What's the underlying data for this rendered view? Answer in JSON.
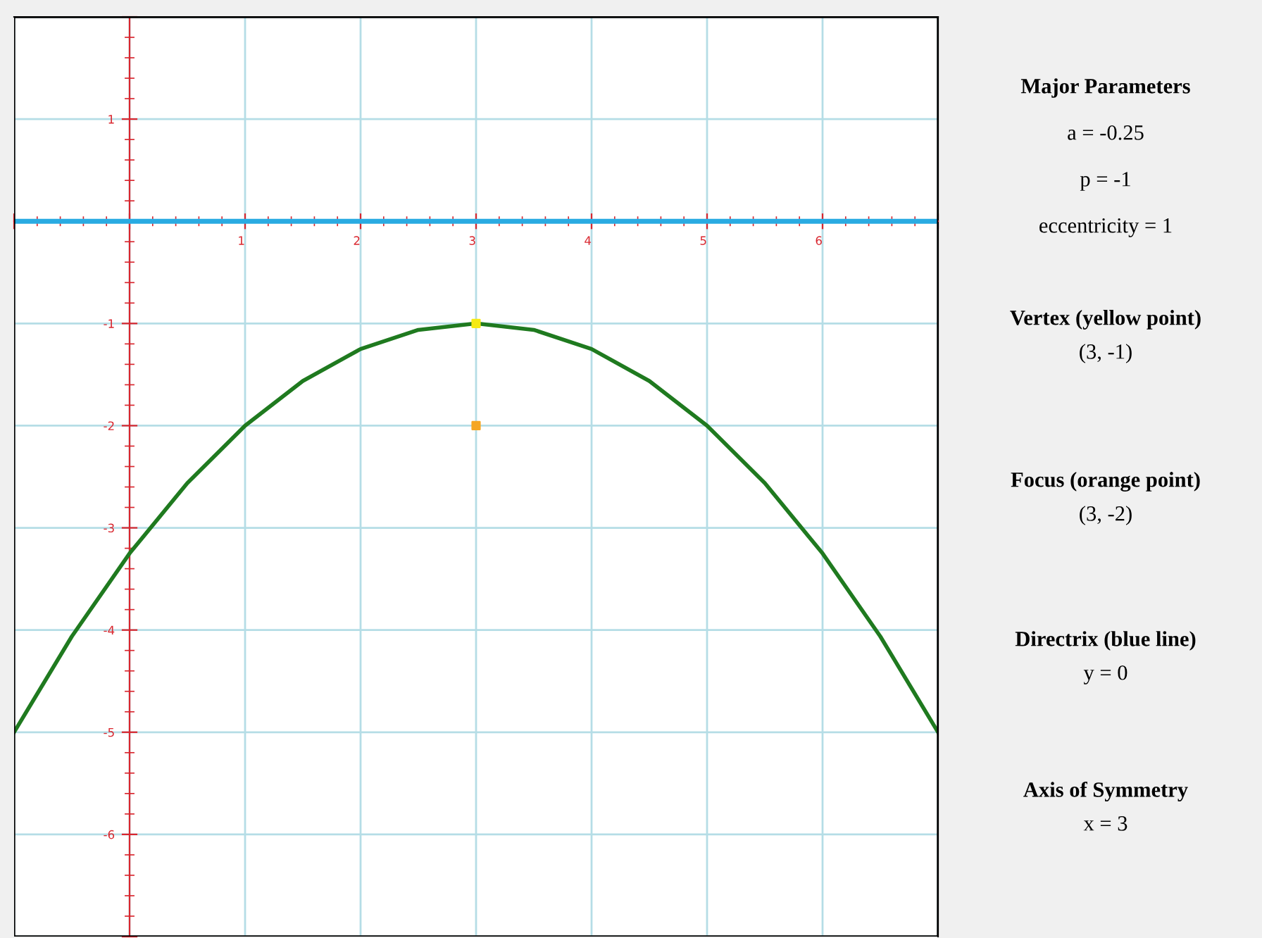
{
  "chart_data": [
    {
      "type": "line",
      "xlim": [
        -1,
        7
      ],
      "ylim": [
        -7,
        2
      ],
      "xticks": [
        {
          "value": -1,
          "label": null
        },
        {
          "value": 0,
          "label": null
        },
        1,
        2,
        3,
        4,
        5,
        6,
        {
          "value": 7,
          "label": null
        }
      ],
      "yticks": [
        {
          "value": -7,
          "label": null
        },
        -6,
        -5,
        -4,
        -3,
        -2,
        -1,
        {
          "value": 0,
          "label": null
        },
        1,
        {
          "value": 2,
          "label": null
        }
      ],
      "grid": true,
      "ref_lines": [
        {
          "axis": "y",
          "value": 0,
          "color": "#29abe2"
        }
      ],
      "series": [
        {
          "type": "line",
          "color": "#1f7a1f",
          "x": [
            -1,
            -0.5,
            0,
            0.5,
            1,
            1.5,
            2,
            2.5,
            3,
            3.5,
            4,
            4.5,
            5,
            5.5,
            6,
            6.5,
            7
          ],
          "values": [
            -5,
            -4.0625,
            -3.25,
            -2.5625,
            -2,
            -1.5625,
            -1.25,
            -1.0625,
            -1,
            -1.0625,
            -1.25,
            -1.5625,
            -2,
            -2.5625,
            -3.25,
            -4.0625,
            -5
          ]
        },
        {
          "type": "scatter",
          "color": "#f5ea14",
          "marker": "square",
          "x": [
            3
          ],
          "values": [
            -1
          ]
        },
        {
          "type": "scatter",
          "color": "#f5a623",
          "marker": "square",
          "x": [
            3
          ],
          "values": [
            -2
          ]
        }
      ]
    },
    {
      "type": "other",
      "title": "Major Parameters",
      "annotations": [
        "a = -0.25",
        "p = -1",
        "eccentricity = 1"
      ]
    },
    {
      "type": "other",
      "title": "Vertex (yellow point)",
      "annotations": [
        "(3, -1)"
      ]
    },
    {
      "type": "other",
      "title": "Focus (orange point)",
      "annotations": [
        "(3, -2)"
      ]
    },
    {
      "type": "other",
      "title": "Directrix (blue line)",
      "annotations": [
        "y = 0"
      ]
    },
    {
      "type": "other",
      "title": "Axis of Symmetry",
      "annotations": [
        "x = 3"
      ]
    }
  ]
}
